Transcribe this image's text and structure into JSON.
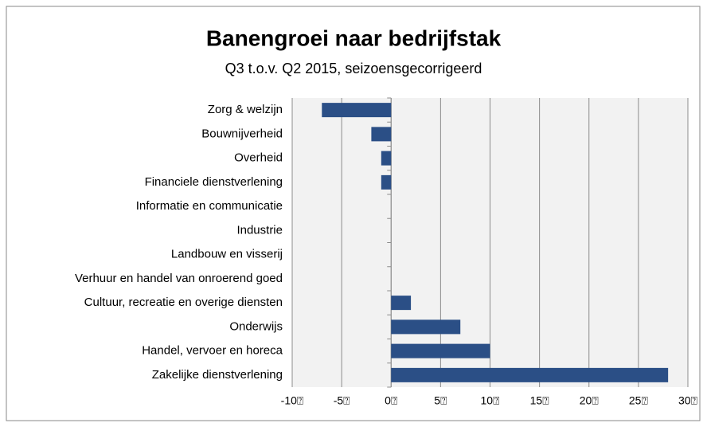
{
  "chart_data": {
    "type": "bar",
    "orientation": "horizontal",
    "title": "Banengroei naar bedrijfstak",
    "subtitle": "Q3 t.o.v. Q2 2015, seizoensgecorrigeerd",
    "categories": [
      "Zorg & welzijn",
      "Bouwnijverheid",
      "Overheid",
      "Financiele dienstverlening",
      "Informatie en communicatie",
      "Industrie",
      "Landbouw en visserij",
      "Verhuur en handel van onroerend goed",
      "Cultuur, recreatie en overige diensten",
      "Onderwijs",
      "Handel, vervoer en horeca",
      "Zakelijke dienstverlening"
    ],
    "values": [
      -7,
      -2,
      -1,
      -1,
      0,
      0,
      0,
      0,
      2,
      7,
      10,
      28
    ],
    "color": "#2b4f86",
    "xlim": [
      -10,
      30
    ],
    "xticks": [
      {
        "value": -10,
        "label": "-10⍰"
      },
      {
        "value": -5,
        "label": "-5⍰"
      },
      {
        "value": 0,
        "label": "0⍰"
      },
      {
        "value": 5,
        "label": "5⍰"
      },
      {
        "value": 10,
        "label": "10⍰"
      },
      {
        "value": 15,
        "label": "15⍰"
      },
      {
        "value": 20,
        "label": "20⍰"
      },
      {
        "value": 25,
        "label": "25⍰"
      },
      {
        "value": 30,
        "label": "30⍰"
      }
    ],
    "grid": true
  }
}
